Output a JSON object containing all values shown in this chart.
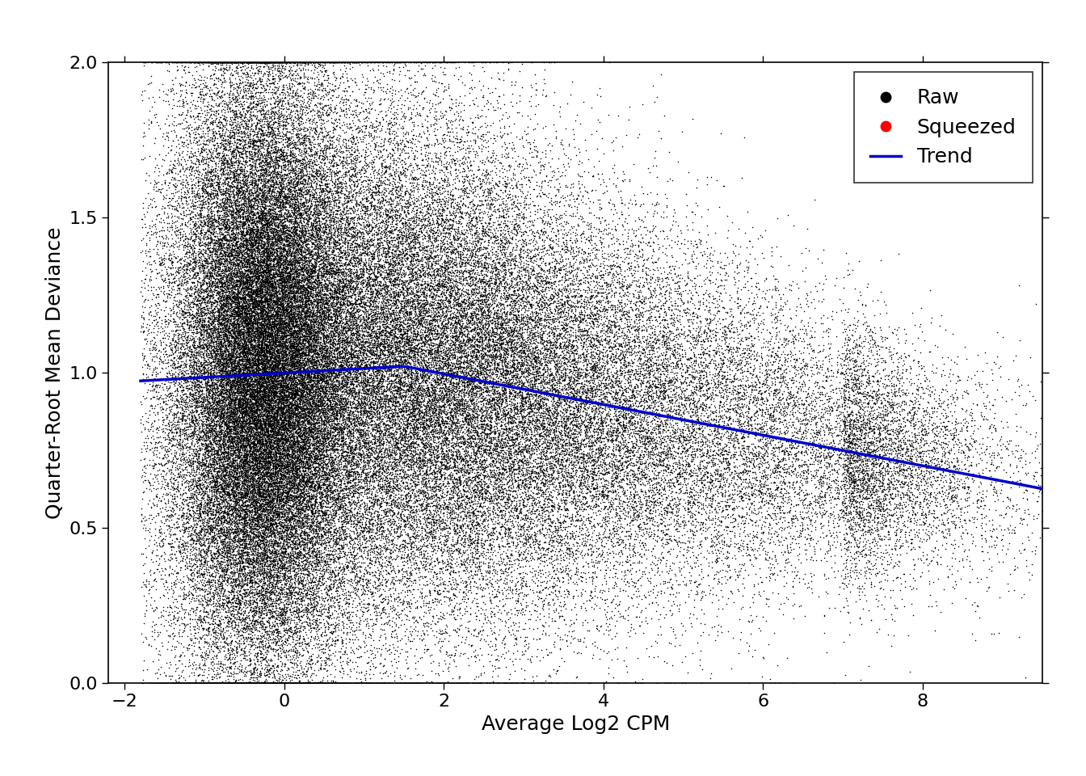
{
  "title": "",
  "xlabel": "Average Log2 CPM",
  "ylabel": "Quarter-Root Mean Deviance",
  "xlim": [
    -1.8,
    9.5
  ],
  "ylim": [
    0.0,
    2.0
  ],
  "xticks": [
    -2,
    0,
    2,
    4,
    6,
    8
  ],
  "yticks": [
    0.0,
    0.5,
    1.0,
    1.5,
    2.0
  ],
  "background_color": "#ffffff",
  "scatter_color": "#000000",
  "scatter_size": 1.2,
  "scatter_alpha": 1.0,
  "trend_color": "#0000cc",
  "trend_linewidth": 2.5,
  "red_dot_color": "#ff0000",
  "legend_labels": [
    "Raw",
    "Squeezed",
    "Trend"
  ],
  "n_points": 120000,
  "seed": 42,
  "xlabel_fontsize": 18,
  "ylabel_fontsize": 18,
  "tick_fontsize": 16,
  "legend_fontsize": 18,
  "figsize": [
    13.44,
    9.6
  ],
  "dpi": 100
}
